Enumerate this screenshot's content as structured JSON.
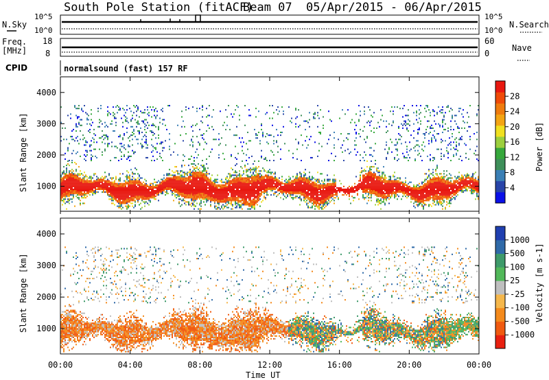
{
  "header": {
    "station": "South Pole Station (fitACF)",
    "beam": "Beam 07",
    "date_range": "05/Apr/2015 - 06/Apr/2015"
  },
  "meta_panels": {
    "nsky_label": "N.Sky",
    "nsky_ticks": [
      "10^5",
      "10^0"
    ],
    "nsearch_label": "N.Search",
    "nsearch_ticks": [
      "10^5",
      "10^0"
    ],
    "freq_label": "Freq.",
    "freq_unit": "[MHz]",
    "freq_ticks": [
      "18",
      "8"
    ],
    "nave_label": "Nave",
    "nave_ticks": [
      "60",
      "0"
    ],
    "cpid_label": "CPID",
    "cpid_value": "normalsound (fast) 157 RF"
  },
  "chart_data": [
    {
      "type": "heatmap",
      "name": "power-panel",
      "xlabel": "",
      "ylabel": "Slant Range [km]",
      "ylim": [
        200,
        4500
      ],
      "y_ticks": [
        "1000",
        "2000",
        "3000",
        "4000"
      ],
      "x_ticks": [
        "00:00",
        "04:00",
        "08:00",
        "12:00",
        "16:00",
        "20:00",
        "00:00"
      ],
      "colorbar": {
        "label": "Power [dB]",
        "ticks": [
          "4",
          "8",
          "12",
          "16",
          "20",
          "24",
          "28"
        ],
        "colors": [
          "#0a10e8",
          "#2844a8",
          "#3a7fb5",
          "#3e8f5a",
          "#36a83c",
          "#9ccf3e",
          "#f0e020",
          "#f3a413",
          "#ef7b0d",
          "#ef4a08",
          "#e81810"
        ]
      },
      "bands": [
        {
          "range_km": [
            600,
            1550
          ],
          "description": "strong echo band",
          "power_db": 28
        },
        {
          "range_km": [
            1700,
            3500
          ],
          "description": "scattered weak echoes",
          "power_db": 8
        }
      ]
    },
    {
      "type": "heatmap",
      "name": "velocity-panel",
      "xlabel": "Time UT",
      "ylabel": "Slant Range [km]",
      "ylim": [
        200,
        4500
      ],
      "y_ticks": [
        "1000",
        "2000",
        "3000",
        "4000"
      ],
      "x_ticks": [
        "00:00",
        "04:00",
        "08:00",
        "12:00",
        "16:00",
        "20:00",
        "00:00"
      ],
      "colorbar": {
        "label": "Velocity [m s-1]",
        "ticks": [
          "1000",
          "500",
          "100",
          "25",
          "-25",
          "-100",
          "-500",
          "-1000"
        ],
        "colors": [
          "#1f3fb0",
          "#2f6aa8",
          "#3e9a6a",
          "#52b85a",
          "#bfbfbf",
          "#f5b74b",
          "#f48a1c",
          "#f05a10",
          "#e82010"
        ]
      }
    }
  ]
}
